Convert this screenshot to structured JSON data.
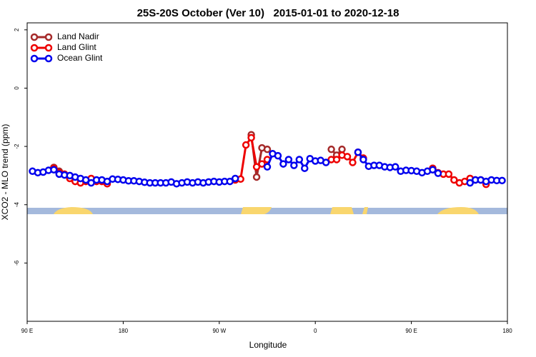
{
  "chart_data": {
    "type": "line",
    "title": "25S-20S October (Ver 10)   2015-01-01 to 2020-12-18",
    "x_label": "Longitude",
    "y_label": "XCO2 - MLO trend (ppm)",
    "x": [
      95,
      100,
      105,
      110,
      115,
      120,
      125,
      130,
      135,
      140,
      145,
      150,
      155,
      160,
      165,
      170,
      175,
      180,
      185,
      190,
      195,
      200,
      205,
      210,
      215,
      220,
      225,
      230,
      235,
      240,
      245,
      250,
      255,
      260,
      265,
      270,
      275,
      280,
      285,
      290,
      295,
      300,
      305,
      310,
      315,
      320,
      325,
      330,
      335,
      340,
      345,
      350,
      355,
      360,
      365,
      370,
      375,
      380,
      385,
      390,
      395,
      400,
      405,
      410,
      415,
      420,
      425,
      430,
      435,
      440,
      445,
      450,
      455,
      460,
      465,
      470,
      475,
      480,
      485,
      490,
      495,
      500,
      505,
      510,
      515,
      520,
      525,
      530,
      535
    ],
    "series": [
      {
        "name": "Land Nadir",
        "color": "#a52a2a",
        "values": [
          null,
          null,
          null,
          null,
          -2.72,
          -2.85,
          null,
          null,
          null,
          null,
          null,
          null,
          null,
          null,
          null,
          null,
          null,
          null,
          null,
          null,
          null,
          null,
          null,
          null,
          null,
          null,
          null,
          null,
          null,
          null,
          null,
          null,
          null,
          null,
          null,
          null,
          null,
          null,
          null,
          null,
          null,
          -1.6,
          -3.05,
          -2.05,
          -2.1,
          null,
          null,
          null,
          null,
          null,
          null,
          null,
          null,
          null,
          null,
          null,
          -2.1,
          -2.3,
          -2.1,
          null,
          null,
          null,
          null,
          null,
          null,
          null,
          null,
          null,
          null,
          null,
          null,
          null,
          null,
          null,
          null,
          -2.75,
          null,
          null,
          null,
          null,
          null,
          null,
          -3.1,
          null,
          null,
          null,
          null,
          null,
          null
        ]
      },
      {
        "name": "Land Glint",
        "color": "#ee0000",
        "values": [
          null,
          null,
          null,
          null,
          -2.75,
          -2.9,
          -2.95,
          -3.1,
          -3.2,
          -3.25,
          -3.2,
          -3.1,
          -3.2,
          -3.2,
          -3.28,
          null,
          null,
          null,
          null,
          null,
          null,
          null,
          null,
          null,
          null,
          null,
          null,
          null,
          null,
          null,
          null,
          null,
          null,
          null,
          null,
          null,
          null,
          null,
          -3.15,
          -3.12,
          -1.95,
          -1.7,
          -2.7,
          -2.6,
          -2.45,
          null,
          null,
          null,
          null,
          null,
          null,
          null,
          null,
          null,
          null,
          null,
          -2.45,
          -2.45,
          -2.3,
          -2.35,
          -2.55,
          -2.2,
          -2.4,
          null,
          null,
          null,
          null,
          null,
          null,
          null,
          null,
          null,
          null,
          null,
          null,
          -2.75,
          -2.9,
          -2.95,
          -2.95,
          -3.15,
          -3.25,
          -3.2,
          -3.1,
          -3.15,
          -3.15,
          -3.3,
          null,
          null,
          null
        ]
      },
      {
        "name": "Ocean Glint",
        "color": "#0000ee",
        "values": [
          -2.85,
          -2.9,
          -2.88,
          -2.82,
          -2.8,
          -2.95,
          -2.98,
          -3.0,
          -3.05,
          -3.1,
          -3.15,
          -3.25,
          -3.15,
          -3.15,
          -3.2,
          -3.12,
          -3.13,
          -3.15,
          -3.18,
          -3.18,
          -3.2,
          -3.23,
          -3.25,
          -3.25,
          -3.25,
          -3.25,
          -3.22,
          -3.28,
          -3.25,
          -3.22,
          -3.25,
          -3.22,
          -3.25,
          -3.22,
          -3.2,
          -3.22,
          -3.2,
          -3.2,
          -3.1,
          null,
          null,
          null,
          null,
          null,
          -2.7,
          -2.25,
          -2.32,
          -2.6,
          -2.45,
          -2.65,
          -2.45,
          -2.75,
          -2.42,
          -2.5,
          -2.48,
          -2.55,
          null,
          null,
          null,
          null,
          null,
          -2.2,
          -2.45,
          -2.68,
          -2.65,
          -2.65,
          -2.7,
          -2.72,
          -2.7,
          -2.85,
          -2.82,
          -2.83,
          -2.85,
          -2.9,
          -2.85,
          -2.8,
          -2.92,
          null,
          null,
          null,
          null,
          null,
          -3.25,
          -3.15,
          -3.15,
          -3.2,
          -3.15,
          -3.17,
          -3.17
        ]
      }
    ],
    "xlim": [
      90,
      540
    ],
    "xticks": [
      {
        "value": 90,
        "label": "90 E"
      },
      {
        "value": 180,
        "label": "180"
      },
      {
        "value": 270,
        "label": "90 W"
      },
      {
        "value": 360,
        "label": "0"
      },
      {
        "value": 450,
        "label": "90 E"
      },
      {
        "value": 540,
        "label": "180"
      }
    ],
    "ylim": [
      -8,
      2.24
    ],
    "yticks": [
      2,
      0,
      -2,
      -4,
      -6
    ],
    "grid": false,
    "legend": "top-left"
  }
}
